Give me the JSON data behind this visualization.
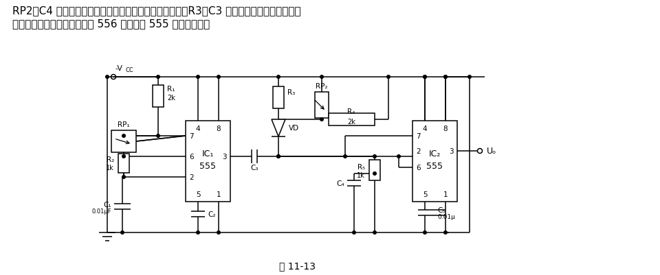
{
  "title1": "RP2、C4 分别根据脉冲频率和占空比的调节范围来选择；R3、C3 则根据输出脉冲的最小宽度",
  "title2": "来选择。也可以用双时基电路 556 代替两片 555 单时基电路。",
  "caption": "图 11-13",
  "bg": "#ffffff",
  "lc": "#000000"
}
